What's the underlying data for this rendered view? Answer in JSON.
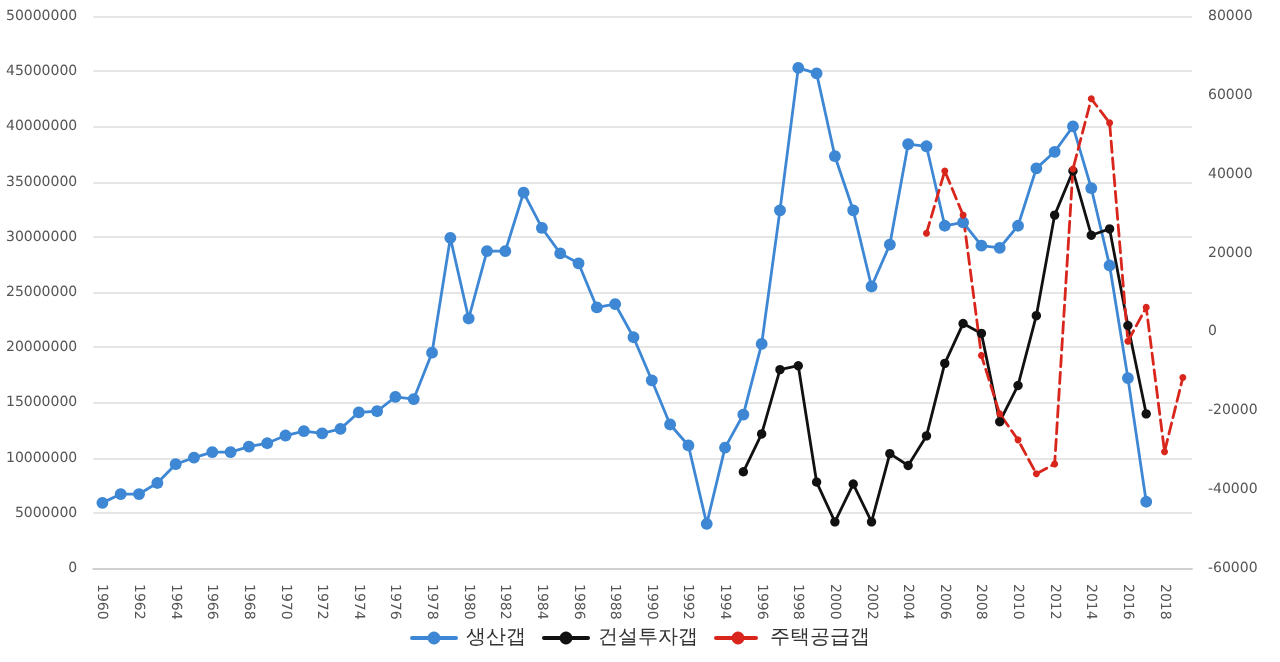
{
  "chart_data": {
    "type": "line",
    "categories": [
      "1960",
      null,
      "1962",
      null,
      "1964",
      null,
      "1966",
      null,
      "1968",
      null,
      "1970",
      null,
      "1972",
      null,
      "1974",
      null,
      "1976",
      null,
      "1978",
      null,
      "1980",
      null,
      "1982",
      null,
      "1984",
      null,
      "1986",
      null,
      "1988",
      null,
      "1990",
      null,
      "1992",
      null,
      "1994",
      null,
      "1996",
      null,
      "1998",
      null,
      "2000",
      null,
      "2002",
      null,
      "2004",
      null,
      "2006",
      null,
      "2008",
      null,
      "2010",
      null,
      "2012",
      null,
      "2014",
      null,
      "2016",
      null,
      "2018",
      null
    ],
    "series": [
      {
        "name": "생산갭",
        "color": "#3d87d4",
        "line_style": "solid",
        "values": [
          5900000,
          6700000,
          6700000,
          7700000,
          9400000,
          10000000,
          10500000,
          10500000,
          11000000,
          11300000,
          12000000,
          12400000,
          12200000,
          12600000,
          14100000,
          14200000,
          15500000,
          15300000,
          19500000,
          29900000,
          22600000,
          28700000,
          28700000,
          34000000,
          30800000,
          28500000,
          27600000,
          23600000,
          23900000,
          20900000,
          17000000,
          13000000,
          11100000,
          4000000,
          10900000,
          13900000,
          20300000,
          32400000,
          45300000,
          44800000,
          37300000,
          32400000,
          25500000,
          29300000,
          38400000,
          38200000,
          31000000,
          31300000,
          29200000,
          29000000,
          31000000,
          36200000,
          37700000,
          40000000,
          34400000,
          27400000,
          17200000,
          6000000,
          null,
          null
        ]
      },
      {
        "name": "건설투자갭",
        "color": "#111111",
        "axis": "y2",
        "line_style": "solid",
        "values": [
          null,
          null,
          null,
          null,
          null,
          null,
          null,
          null,
          null,
          null,
          null,
          null,
          null,
          null,
          null,
          null,
          null,
          null,
          null,
          null,
          null,
          null,
          null,
          null,
          null,
          null,
          null,
          null,
          null,
          null,
          null,
          null,
          null,
          null,
          null,
          -35600,
          -26000,
          -9700,
          -8700,
          -38200,
          -48300,
          -38700,
          -48300,
          -31000,
          -34000,
          -26500,
          -8100,
          2000,
          -500,
          -22900,
          -13700,
          4000,
          29500,
          40700,
          24400,
          26000,
          1500,
          -20900,
          null,
          null
        ]
      },
      {
        "name": "주택공급갭",
        "color": "#d9261c",
        "axis": "y2",
        "line_style": "dashed",
        "values": [
          null,
          null,
          null,
          null,
          null,
          null,
          null,
          null,
          null,
          null,
          null,
          null,
          null,
          null,
          null,
          null,
          null,
          null,
          null,
          null,
          null,
          null,
          null,
          null,
          null,
          null,
          null,
          null,
          null,
          null,
          null,
          null,
          null,
          null,
          null,
          null,
          null,
          null,
          null,
          null,
          null,
          null,
          null,
          null,
          null,
          24900,
          40700,
          29500,
          -6100,
          -20900,
          -27500,
          -36100,
          -33600,
          41200,
          59000,
          52900,
          -2500,
          6100,
          -30500,
          -11700
        ]
      }
    ],
    "ylim": [
      0,
      50000000
    ],
    "yticks": [
      0,
      5000000,
      10000000,
      15000000,
      20000000,
      25000000,
      30000000,
      35000000,
      40000000,
      45000000,
      50000000
    ],
    "y2lim": [
      -60000,
      80000
    ],
    "y2ticks": [
      -60000,
      -40000,
      -20000,
      0,
      20000,
      40000,
      60000,
      80000
    ],
    "grid": "y",
    "legend": "bottom",
    "marker": "circle"
  }
}
